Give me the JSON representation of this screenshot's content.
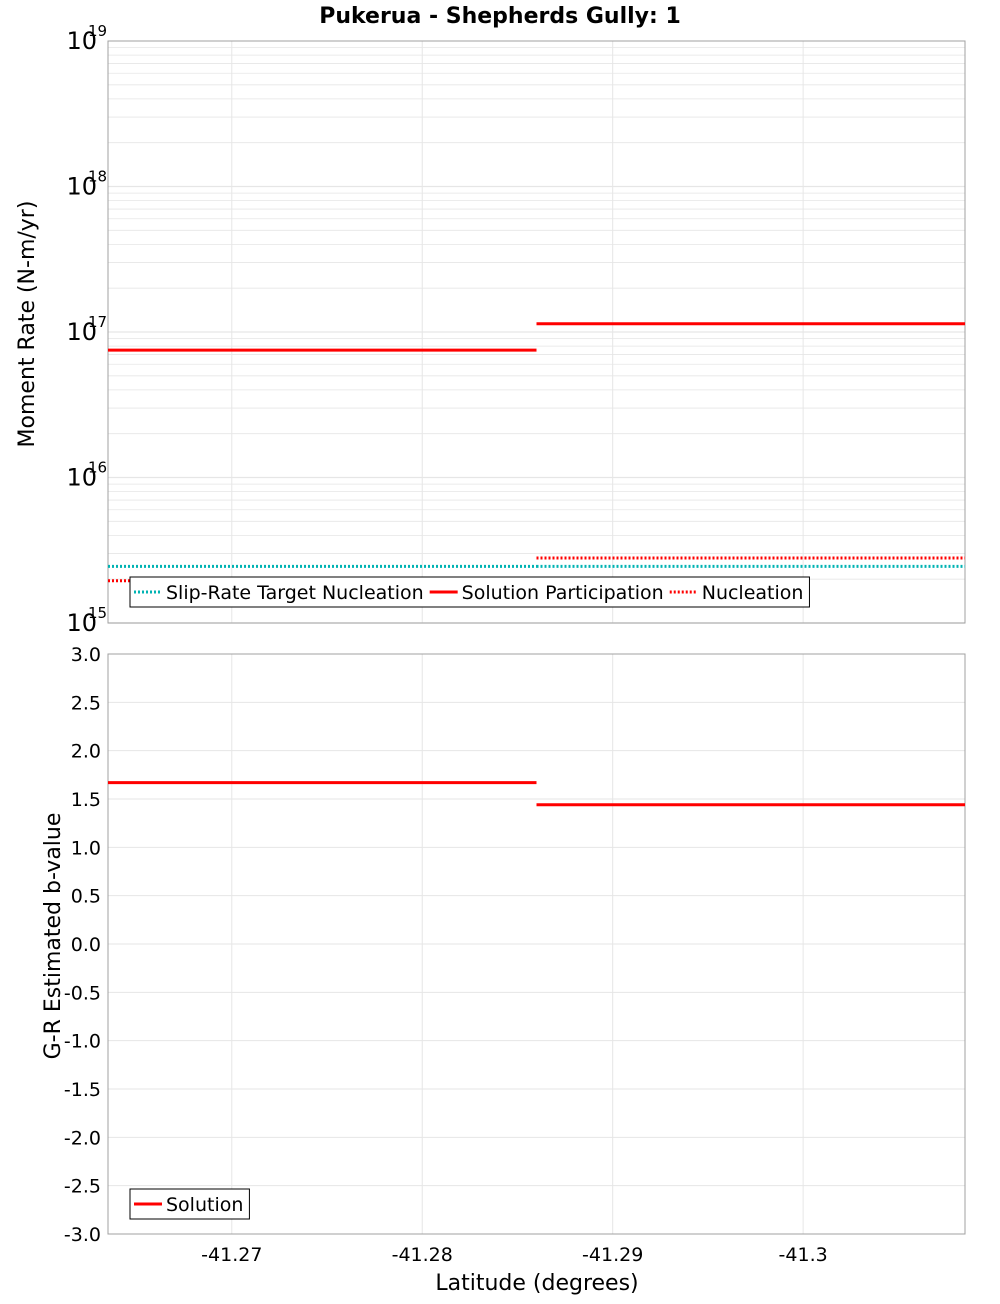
{
  "title": "Pukerua - Shepherds Gully: 1",
  "xlabel": "Latitude (degrees)",
  "colors": {
    "red": "#ff0000",
    "cyan": "#00b3b3",
    "grid": "#e6e6e6",
    "frame": "#a0a0a0"
  },
  "chart_data": [
    {
      "type": "line",
      "name": "moment-rate",
      "ylabel": "Moment Rate (N-m/yr)",
      "yscale": "log",
      "xlim": [
        -41.2635,
        -41.3085
      ],
      "ylim": [
        1000000000000000.0,
        1e+19
      ],
      "x_ticks": [
        "-41.27",
        "-41.28",
        "-41.29",
        "-41.3"
      ],
      "x_tick_values": [
        -41.27,
        -41.28,
        -41.29,
        -41.3
      ],
      "y_ticks": [
        {
          "value": 1000000000000000.0,
          "base": "10",
          "exp": "15"
        },
        {
          "value": 1e+16,
          "base": "10",
          "exp": "16"
        },
        {
          "value": 1e+17,
          "base": "10",
          "exp": "17"
        },
        {
          "value": 1e+18,
          "base": "10",
          "exp": "18"
        },
        {
          "value": 1e+19,
          "base": "10",
          "exp": "19"
        }
      ],
      "series": [
        {
          "name": "Slip-Rate Target Nucleation",
          "style": "dotted",
          "color": "#00b3b3",
          "segments": [
            {
              "x": [
                -41.2635,
                -41.286
              ],
              "y": 2450000000000000.0
            },
            {
              "x": [
                -41.286,
                -41.3085
              ],
              "y": 2450000000000000.0
            }
          ]
        },
        {
          "name": "Solution Participation",
          "style": "solid",
          "color": "#ff0000",
          "segments": [
            {
              "x": [
                -41.2635,
                -41.286
              ],
              "y": 7.5e+16
            },
            {
              "x": [
                -41.286,
                -41.3085
              ],
              "y": 1.14e+17
            }
          ]
        },
        {
          "name": "Nucleation",
          "style": "dotted",
          "color": "#ff0000",
          "segments": [
            {
              "x": [
                -41.2635,
                -41.286
              ],
              "y": 1950000000000000.0
            },
            {
              "x": [
                -41.286,
                -41.3085
              ],
              "y": 2800000000000000.0
            }
          ]
        }
      ],
      "legend": [
        "Slip-Rate Target Nucleation",
        "Solution Participation",
        "Nucleation"
      ],
      "legend_position": "bottom-left"
    },
    {
      "type": "line",
      "name": "b-value",
      "ylabel": "G-R Estimated b-value",
      "yscale": "linear",
      "xlim": [
        -41.2635,
        -41.3085
      ],
      "ylim": [
        -3.0,
        3.0
      ],
      "x_ticks": [
        "-41.27",
        "-41.28",
        "-41.29",
        "-41.3"
      ],
      "x_tick_values": [
        -41.27,
        -41.28,
        -41.29,
        -41.3
      ],
      "y_ticks": [
        "3.0",
        "2.5",
        "2.0",
        "1.5",
        "1.0",
        "0.5",
        "0.0",
        "-0.5",
        "-1.0",
        "-1.5",
        "-2.0",
        "-2.5",
        "-3.0"
      ],
      "y_tick_values": [
        3.0,
        2.5,
        2.0,
        1.5,
        1.0,
        0.5,
        0.0,
        -0.5,
        -1.0,
        -1.5,
        -2.0,
        -2.5,
        -3.0
      ],
      "series": [
        {
          "name": "Solution",
          "style": "solid",
          "color": "#ff0000",
          "segments": [
            {
              "x": [
                -41.2635,
                -41.286
              ],
              "y": 1.67
            },
            {
              "x": [
                -41.286,
                -41.3085
              ],
              "y": 1.44
            }
          ]
        }
      ],
      "legend": [
        "Solution"
      ],
      "legend_position": "bottom-left"
    }
  ]
}
